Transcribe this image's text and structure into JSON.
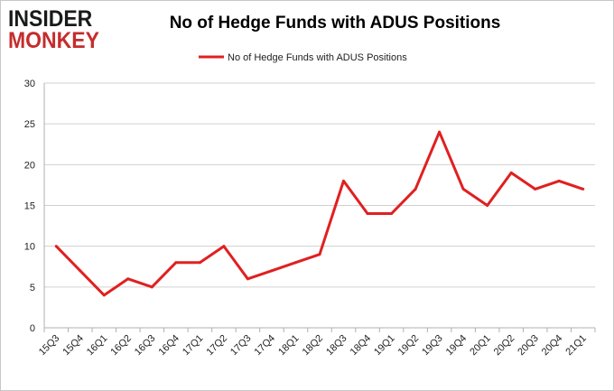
{
  "logo": {
    "line1": "INSIDER",
    "line2": "MONKEY"
  },
  "colors": {
    "series": "#e02020",
    "grid": "#d0d0d0",
    "logo_dark": "#1a1a1a",
    "logo_red": "#c62c2c"
  },
  "chart_data": {
    "type": "line",
    "title": "No of Hedge Funds with ADUS Positions",
    "xlabel": "",
    "ylabel": "",
    "ylim": [
      0,
      30
    ],
    "yticks": [
      0,
      5,
      10,
      15,
      20,
      25,
      30
    ],
    "grid": "horizontal",
    "legend": "top-center",
    "categories": [
      "15Q3",
      "15Q4",
      "16Q1",
      "16Q2",
      "16Q3",
      "16Q4",
      "17Q1",
      "17Q2",
      "17Q3",
      "17Q4",
      "18Q1",
      "18Q2",
      "18Q3",
      "18Q4",
      "19Q1",
      "19Q2",
      "19Q3",
      "19Q4",
      "20Q1",
      "20Q2",
      "20Q3",
      "20Q4",
      "21Q1"
    ],
    "series": [
      {
        "name": "No of Hedge Funds with ADUS Positions",
        "color": "#e02020",
        "values": [
          10,
          7,
          4,
          6,
          5,
          8,
          8,
          10,
          6,
          7,
          8,
          9,
          18,
          14,
          14,
          17,
          24,
          17,
          15,
          19,
          17,
          18,
          17
        ]
      }
    ]
  }
}
